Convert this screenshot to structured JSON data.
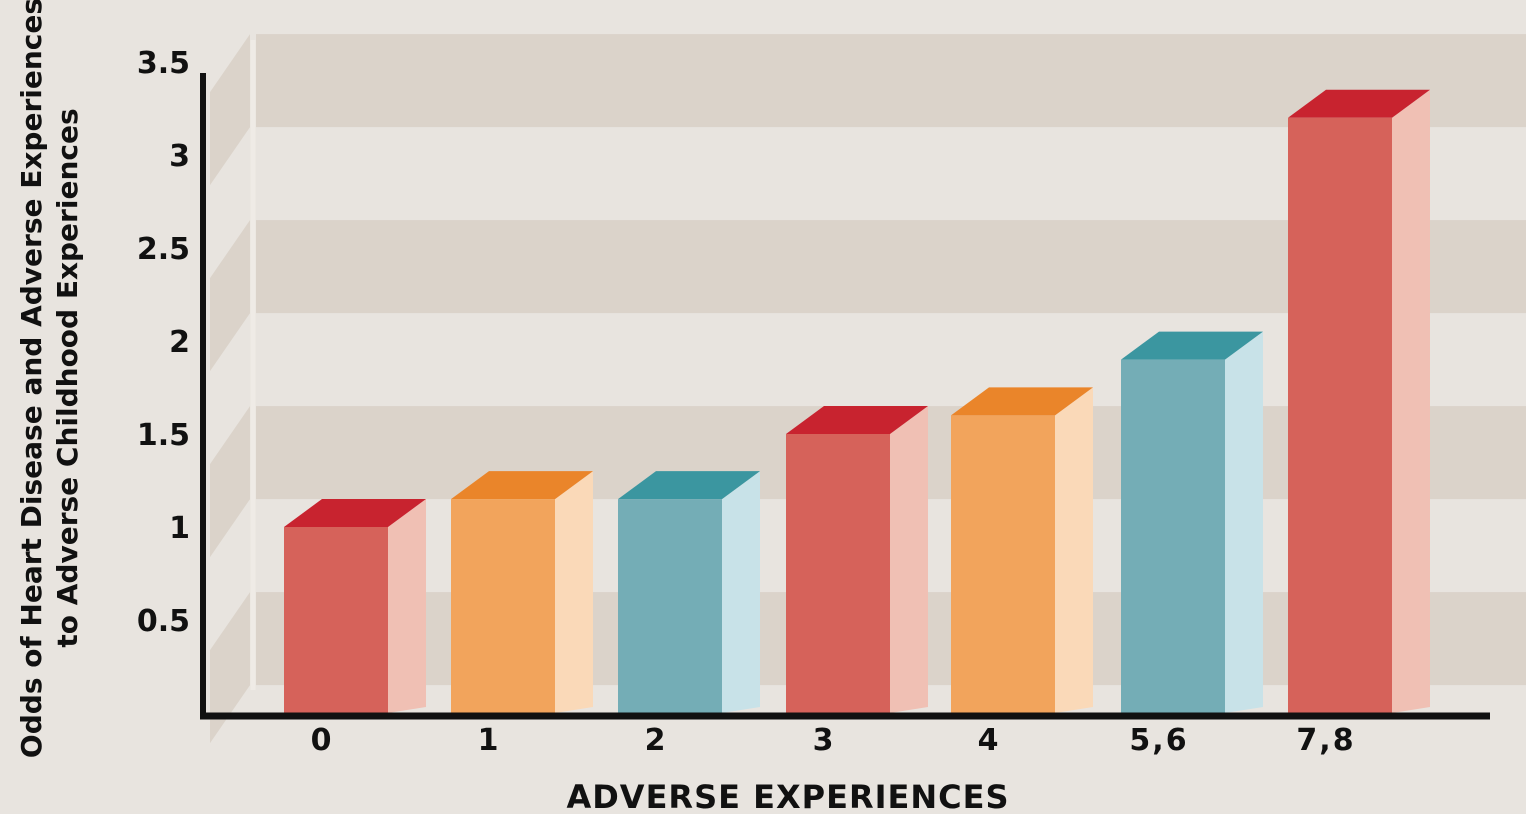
{
  "chart_data": {
    "type": "bar",
    "categories": [
      "0",
      "1",
      "2",
      "3",
      "4",
      "5,6",
      "7,8"
    ],
    "values": [
      1.0,
      1.15,
      1.15,
      1.5,
      1.6,
      1.9,
      3.2
    ],
    "colors": [
      "red",
      "orange",
      "teal",
      "red",
      "orange",
      "teal",
      "red"
    ],
    "xlabel": "ADVERSE EXPERIENCES",
    "ylabel_lines": [
      "Odds of Heart Disease and Adverse Experiences",
      "to Adverse Childhood Experiences"
    ],
    "yticks": [
      "0.5",
      "1",
      "1.5",
      "2",
      "2.5",
      "3",
      "3.5"
    ],
    "ylim": [
      0,
      3.5
    ],
    "grid": "horizontal bands"
  },
  "palette": {
    "red": {
      "front": "#d6625a",
      "side": "#f0c0b4",
      "top": "#c8232f"
    },
    "orange": {
      "front": "#f2a45c",
      "side": "#fad9b8",
      "top": "#ea852a"
    },
    "teal": {
      "front": "#74adb6",
      "side": "#c8e2e8",
      "top": "#3b96a0"
    },
    "background": "#e8e4df",
    "band": "#dbd3ca",
    "axis": "#111111"
  }
}
